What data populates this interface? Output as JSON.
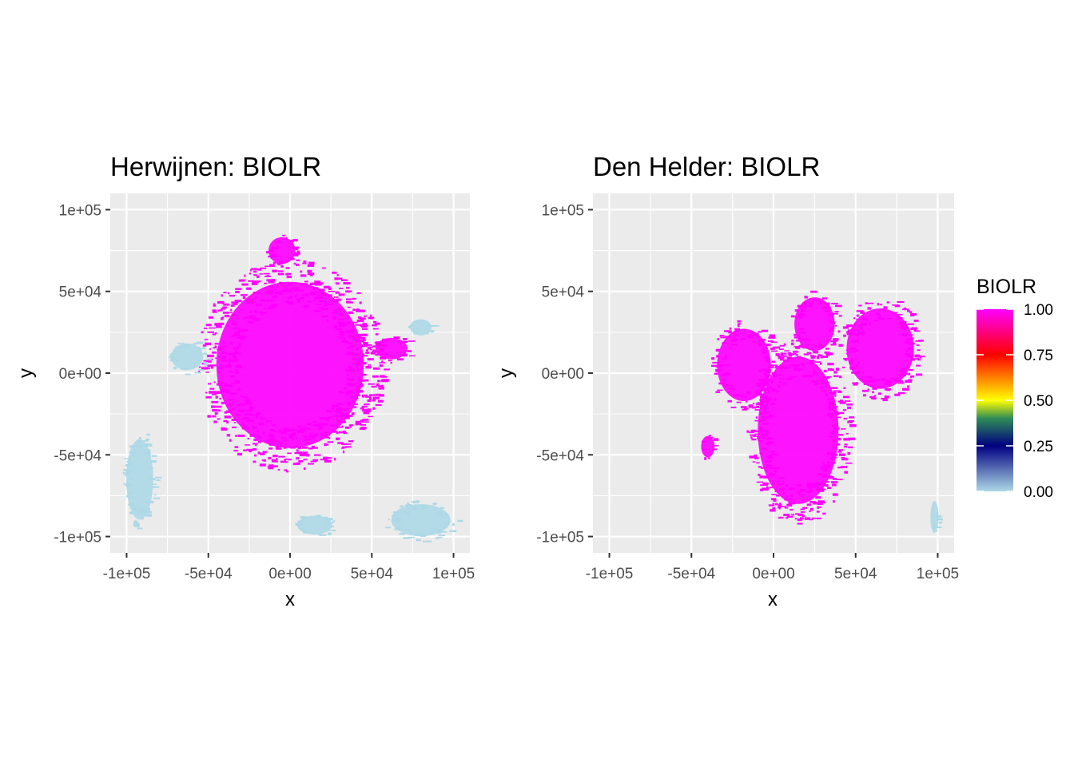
{
  "chart_data": [
    {
      "type": "heatmap",
      "title": "Herwijnen: BIOLR",
      "xlabel": "x",
      "ylabel": "y",
      "xlim": [
        -110000,
        110000
      ],
      "ylim": [
        -110000,
        110000
      ],
      "x_ticks": [
        -100000,
        -50000,
        0,
        50000,
        100000
      ],
      "x_tick_labels": [
        "-1e+05",
        "-5e+04",
        "0e+00",
        "5e+04",
        "1e+05"
      ],
      "y_ticks": [
        -100000,
        -50000,
        0,
        50000,
        100000
      ],
      "y_tick_labels": [
        "-1e+05",
        "-5e+04",
        "0e+00",
        "5e+04",
        "1e+05"
      ],
      "grid": true,
      "regions": [
        {
          "value": 1.0,
          "shape": "disc",
          "cx": 0,
          "cy": 5000,
          "rx": 55000,
          "ry": 62000
        },
        {
          "value": 1.0,
          "shape": "disc",
          "cx": -5000,
          "cy": 75000,
          "rx": 10000,
          "ry": 10000
        },
        {
          "value": 1.0,
          "shape": "disc",
          "cx": 62000,
          "cy": 15000,
          "rx": 12000,
          "ry": 8000
        },
        {
          "value": 0.0,
          "shape": "disc",
          "cx": -92000,
          "cy": -65000,
          "rx": 10000,
          "ry": 30000
        },
        {
          "value": 0.0,
          "shape": "disc",
          "cx": -63000,
          "cy": 10000,
          "rx": 12000,
          "ry": 10000
        },
        {
          "value": 0.0,
          "shape": "disc",
          "cx": 80000,
          "cy": -90000,
          "rx": 22000,
          "ry": 12000
        },
        {
          "value": 0.0,
          "shape": "disc",
          "cx": 15000,
          "cy": -93000,
          "rx": 13000,
          "ry": 7000
        },
        {
          "value": 0.0,
          "shape": "disc",
          "cx": 80000,
          "cy": 28000,
          "rx": 8000,
          "ry": 6000
        }
      ]
    },
    {
      "type": "heatmap",
      "title": "Den Helder: BIOLR",
      "xlabel": "x",
      "ylabel": "y",
      "xlim": [
        -110000,
        110000
      ],
      "ylim": [
        -110000,
        110000
      ],
      "x_ticks": [
        -100000,
        -50000,
        0,
        50000,
        100000
      ],
      "x_tick_labels": [
        "-1e+05",
        "-5e+04",
        "0e+00",
        "5e+04",
        "1e+05"
      ],
      "y_ticks": [
        -100000,
        -50000,
        0,
        50000,
        100000
      ],
      "y_tick_labels": [
        "-1e+05",
        "-5e+04",
        "0e+00",
        "5e+04",
        "1e+05"
      ],
      "grid": true,
      "regions": [
        {
          "value": 1.0,
          "shape": "disc",
          "cx": -18000,
          "cy": 5000,
          "rx": 20000,
          "ry": 27000
        },
        {
          "value": 1.0,
          "shape": "disc",
          "cx": 15000,
          "cy": -35000,
          "rx": 30000,
          "ry": 55000
        },
        {
          "value": 1.0,
          "shape": "disc",
          "cx": 65000,
          "cy": 15000,
          "rx": 25000,
          "ry": 30000
        },
        {
          "value": 1.0,
          "shape": "disc",
          "cx": 25000,
          "cy": 30000,
          "rx": 15000,
          "ry": 20000
        },
        {
          "value": 1.0,
          "shape": "disc",
          "cx": -40000,
          "cy": -45000,
          "rx": 5000,
          "ry": 8000
        },
        {
          "value": 0.0,
          "shape": "disc",
          "cx": 98000,
          "cy": -88000,
          "rx": 3000,
          "ry": 12000
        }
      ]
    }
  ],
  "legend": {
    "title": "BIOLR",
    "position": "right",
    "range": [
      0,
      1
    ],
    "tick_values": [
      0,
      0.25,
      0.5,
      0.75,
      1
    ],
    "tick_labels": [
      "0.00",
      "0.25",
      "0.50",
      "0.75",
      "1.00"
    ],
    "colors": [
      {
        "stop": 0.0,
        "color": "#add8e6"
      },
      {
        "stop": 0.25,
        "color": "#000080"
      },
      {
        "stop": 0.4,
        "color": "#2e8b57"
      },
      {
        "stop": 0.5,
        "color": "#ffff00"
      },
      {
        "stop": 0.75,
        "color": "#ff0000"
      },
      {
        "stop": 1.0,
        "color": "#ff00ff"
      }
    ]
  },
  "colors": {
    "panel_background": "#ebebeb",
    "grid_major": "#ffffff",
    "high_value": "#ff00ff",
    "low_value": "#add8e6"
  }
}
